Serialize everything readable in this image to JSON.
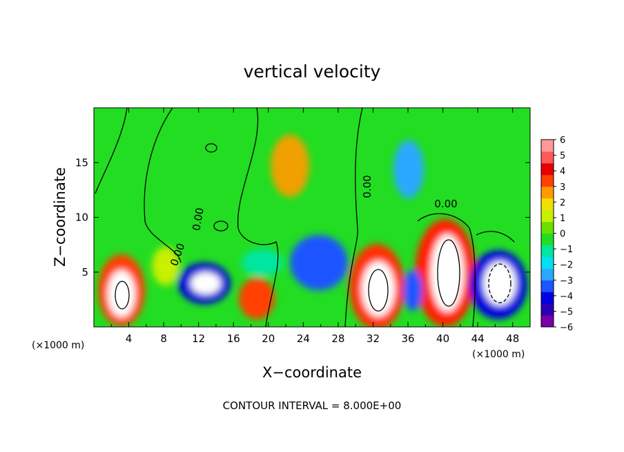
{
  "chart_data": {
    "type": "heatmap",
    "title": "vertical velocity",
    "xlabel": "X−coordinate",
    "ylabel": "Z−coordinate",
    "x_unit": "(×1000 m)",
    "xlim": [
      0,
      50
    ],
    "ylim": [
      0,
      20
    ],
    "x_ticks": [
      "4",
      "8",
      "12",
      "16",
      "20",
      "24",
      "28",
      "32",
      "36",
      "40",
      "44",
      "48"
    ],
    "y_ticks": [
      "5",
      "10",
      "15"
    ],
    "footer": "CONTOUR INTERVAL = 8.000E+00",
    "contour_labels": [
      "0.00",
      "0.00",
      "0.00",
      "0.00"
    ],
    "colorbar": {
      "ticks": [
        "6",
        "5",
        "4",
        "3",
        "2",
        "1",
        "0",
        "−1",
        "−2",
        "−3",
        "−4",
        "−5",
        "−6"
      ],
      "range": [
        -6,
        6
      ],
      "colors": [
        "#7a00a8",
        "#2a00b4",
        "#0000e0",
        "#1c54ff",
        "#2aa8ff",
        "#00e0f0",
        "#00e6a0",
        "#22dd22",
        "#6ae000",
        "#c8f000",
        "#f0e000",
        "#ff9a00",
        "#ff4000",
        "#e80000",
        "#ff5a5a",
        "#ff9a9a"
      ]
    },
    "features": [
      {
        "x": 3.5,
        "z": 3.0,
        "w": 5.5
      },
      {
        "x": 13.0,
        "z": 4.0,
        "w": -5.5
      },
      {
        "x": 19.0,
        "z": 2.5,
        "w": 3.5
      },
      {
        "x": 25.5,
        "z": 6.0,
        "w": -3.5
      },
      {
        "x": 32.5,
        "z": 3.5,
        "w": 6.0
      },
      {
        "x": 40.5,
        "z": 5.0,
        "w": 6.0
      },
      {
        "x": 46.0,
        "z": 4.0,
        "w": -6.0
      },
      {
        "x": 23.0,
        "z": 14.5,
        "w": 3.0
      },
      {
        "x": 36.5,
        "z": 14.0,
        "w": -3.0
      },
      {
        "x": 36.0,
        "z": 3.0,
        "w": -4.0
      }
    ]
  }
}
